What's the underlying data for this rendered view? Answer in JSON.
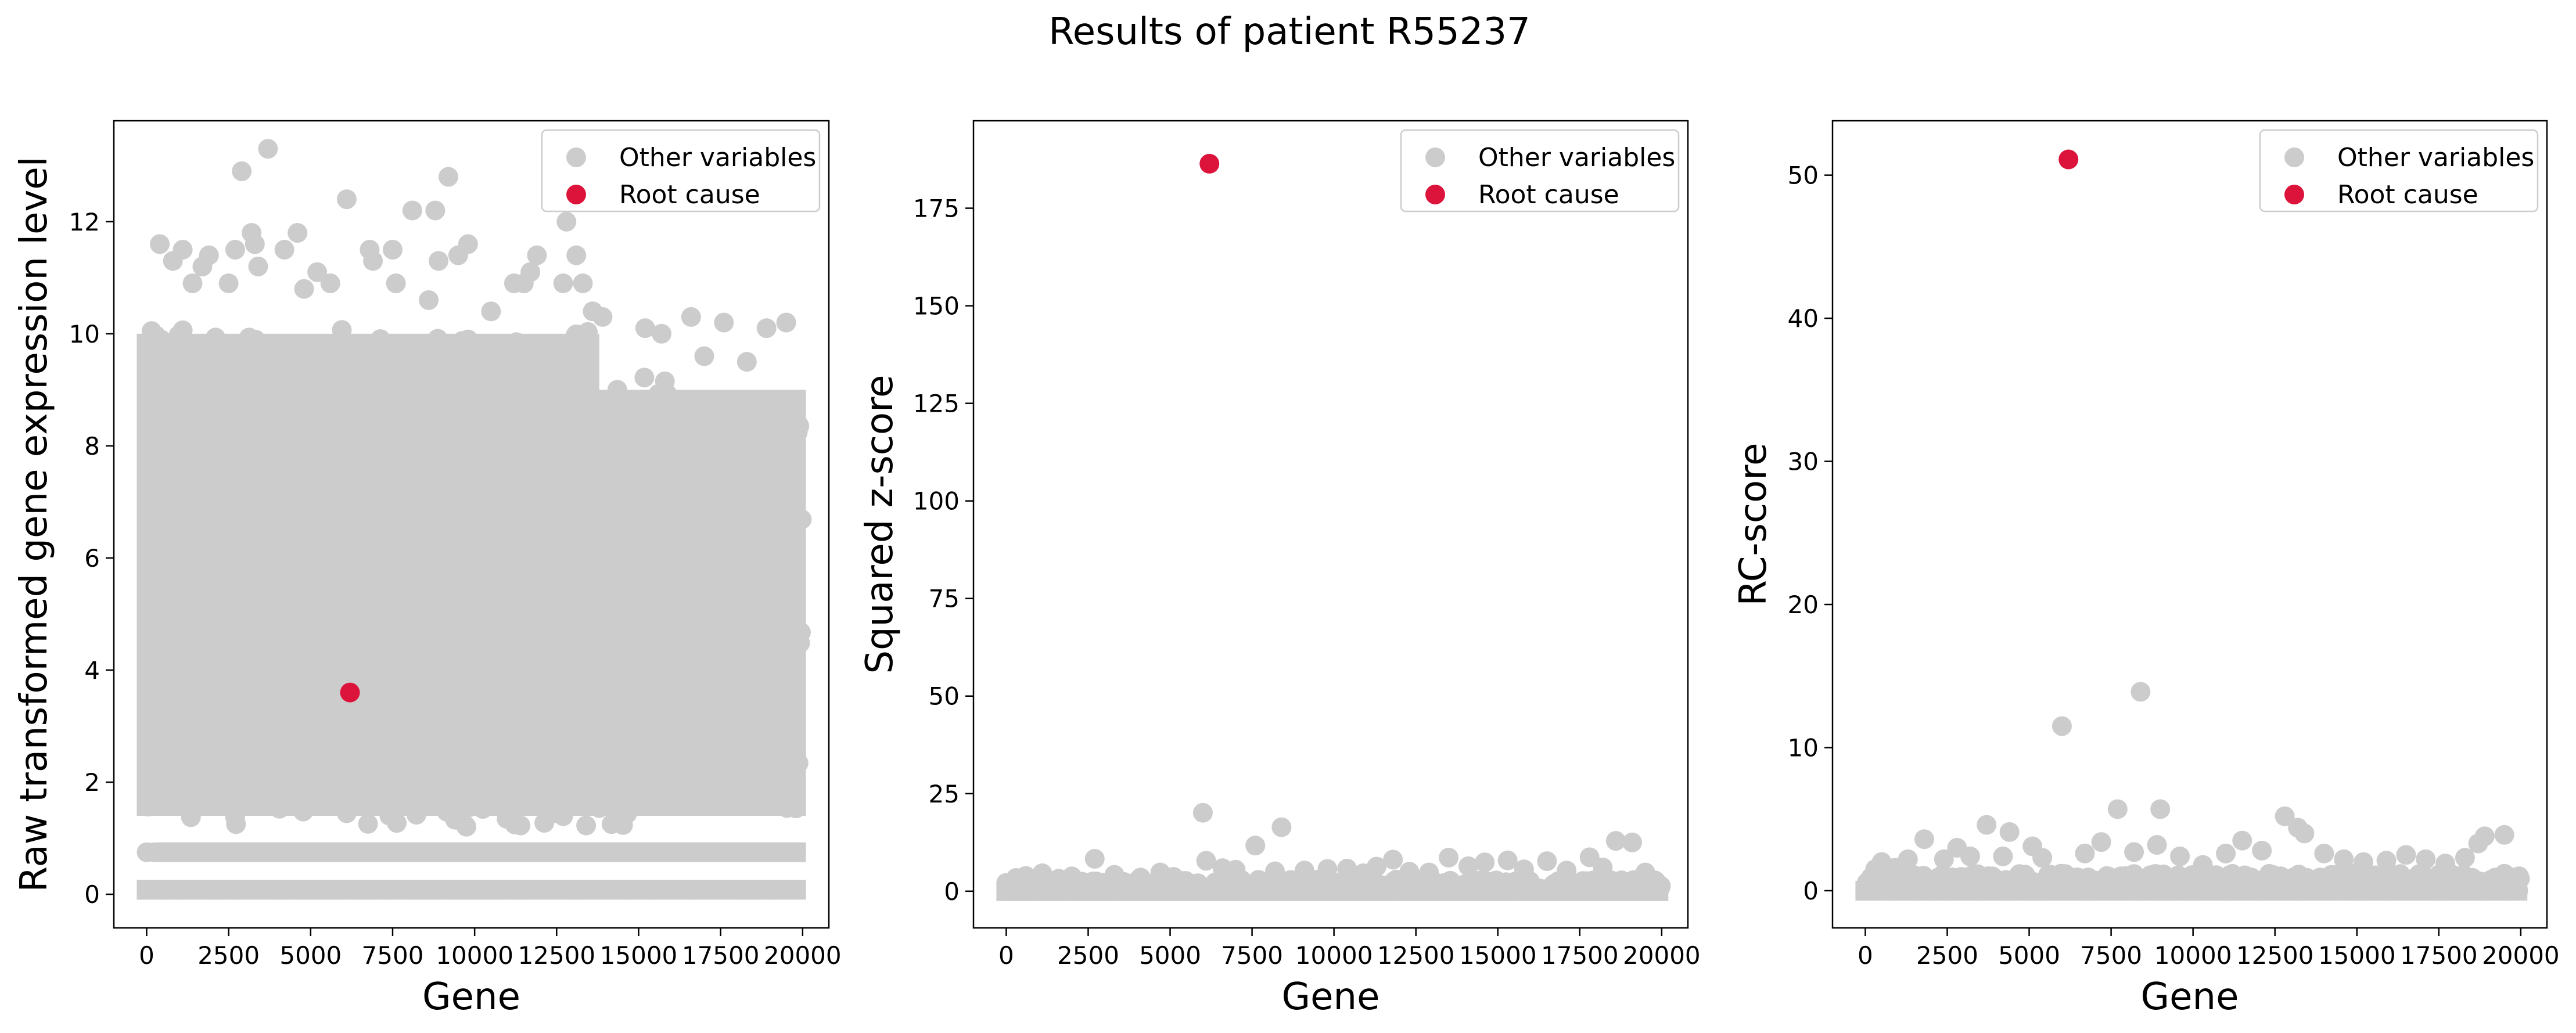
{
  "colors": {
    "other": "#cccccc",
    "root": "#dc143c",
    "axis": "#000000",
    "legend_border": "#cccccc"
  },
  "chart_data": {
    "title": "Results of patient R55237",
    "charts": [
      {
        "type": "scatter",
        "xlabel": "Gene",
        "ylabel": "Raw transformed gene expression level",
        "xlim": [
          -1000,
          20800
        ],
        "ylim": [
          -0.6,
          13.8
        ],
        "xticks": [
          0,
          2500,
          5000,
          7500,
          10000,
          12500,
          15000,
          17500,
          20000
        ],
        "yticks": [
          0,
          2,
          4,
          6,
          8,
          10,
          12
        ],
        "legend_position": "top-right",
        "series": [
          {
            "name": "Other variables",
            "generated": {
              "n_genes": 20000,
              "profile": "expression"
            },
            "values": [
              [
                400,
                11.6
              ],
              [
                800,
                11.3
              ],
              [
                1100,
                11.5
              ],
              [
                1400,
                10.9
              ],
              [
                1700,
                11.2
              ],
              [
                1900,
                11.4
              ],
              [
                2500,
                10.9
              ],
              [
                2700,
                11.5
              ],
              [
                2900,
                12.9
              ],
              [
                3200,
                11.8
              ],
              [
                3400,
                11.2
              ],
              [
                3300,
                11.6
              ],
              [
                3700,
                13.3
              ],
              [
                4200,
                11.5
              ],
              [
                4600,
                11.8
              ],
              [
                4800,
                10.8
              ],
              [
                5200,
                11.1
              ],
              [
                5600,
                10.9
              ],
              [
                6100,
                12.4
              ],
              [
                6800,
                11.5
              ],
              [
                6900,
                11.3
              ],
              [
                7500,
                11.5
              ],
              [
                7600,
                10.9
              ],
              [
                8100,
                12.2
              ],
              [
                8600,
                10.6
              ],
              [
                8800,
                12.2
              ],
              [
                8900,
                11.3
              ],
              [
                9200,
                12.8
              ],
              [
                9500,
                11.4
              ],
              [
                9800,
                11.6
              ],
              [
                10500,
                10.4
              ],
              [
                11200,
                10.9
              ],
              [
                11500,
                10.9
              ],
              [
                11700,
                11.1
              ],
              [
                11900,
                11.4
              ],
              [
                12700,
                10.9
              ],
              [
                12800,
                12.0
              ],
              [
                13100,
                11.4
              ],
              [
                13300,
                10.9
              ],
              [
                13600,
                10.4
              ],
              [
                13900,
                10.3
              ],
              [
                15200,
                10.1
              ],
              [
                15700,
                10.0
              ],
              [
                16600,
                10.3
              ],
              [
                17000,
                9.6
              ],
              [
                17600,
                10.2
              ],
              [
                18300,
                9.5
              ],
              [
                18900,
                10.1
              ],
              [
                19500,
                10.2
              ]
            ]
          },
          {
            "name": "Root cause",
            "values": [
              [
                6200,
                3.6
              ]
            ]
          }
        ]
      },
      {
        "type": "scatter",
        "xlabel": "Gene",
        "ylabel": "Squared z-score",
        "xlim": [
          -1000,
          20800
        ],
        "ylim": [
          -9.4,
          197.4
        ],
        "xticks": [
          0,
          2500,
          5000,
          7500,
          10000,
          12500,
          15000,
          17500,
          20000
        ],
        "yticks": [
          0,
          25,
          50,
          75,
          100,
          125,
          150,
          175
        ],
        "legend_position": "top-right",
        "series": [
          {
            "name": "Other variables",
            "generated": {
              "n_genes": 20000,
              "profile": "lowband",
              "band": 3.0
            },
            "values": [
              [
                300,
                3.4
              ],
              [
                600,
                3.9
              ],
              [
                1100,
                4.6
              ],
              [
                1600,
                3.2
              ],
              [
                2000,
                3.8
              ],
              [
                2700,
                8.3
              ],
              [
                3300,
                4.2
              ],
              [
                4100,
                3.5
              ],
              [
                4700,
                4.8
              ],
              [
                5100,
                3.7
              ],
              [
                6000,
                20.1
              ],
              [
                6100,
                7.8
              ],
              [
                6600,
                5.9
              ],
              [
                7000,
                5.5
              ],
              [
                7600,
                11.7
              ],
              [
                8200,
                5.1
              ],
              [
                8400,
                16.4
              ],
              [
                9100,
                5.3
              ],
              [
                9800,
                5.7
              ],
              [
                10400,
                5.8
              ],
              [
                10900,
                4.6
              ],
              [
                11300,
                6.3
              ],
              [
                11800,
                8.1
              ],
              [
                12300,
                5.0
              ],
              [
                12900,
                4.8
              ],
              [
                13500,
                8.6
              ],
              [
                14100,
                6.4
              ],
              [
                14600,
                7.4
              ],
              [
                15300,
                7.9
              ],
              [
                15800,
                5.6
              ],
              [
                16500,
                7.7
              ],
              [
                17100,
                5.3
              ],
              [
                17800,
                8.7
              ],
              [
                18200,
                6.1
              ],
              [
                18600,
                12.9
              ],
              [
                19100,
                12.5
              ],
              [
                19500,
                4.8
              ]
            ]
          },
          {
            "name": "Root cause",
            "values": [
              [
                6200,
                186.4
              ]
            ]
          }
        ]
      },
      {
        "type": "scatter",
        "xlabel": "Gene",
        "ylabel": "RC-score",
        "xlim": [
          -1000,
          20800
        ],
        "ylim": [
          -2.6,
          53.8
        ],
        "xticks": [
          0,
          2500,
          5000,
          7500,
          10000,
          12500,
          15000,
          17500,
          20000
        ],
        "yticks": [
          0,
          10,
          20,
          30,
          40,
          50
        ],
        "legend_position": "top-right",
        "series": [
          {
            "name": "Other variables",
            "generated": {
              "n_genes": 20000,
              "profile": "lowband",
              "band": 1.2
            },
            "values": [
              [
                300,
                1.5
              ],
              [
                500,
                2.0
              ],
              [
                900,
                1.6
              ],
              [
                1300,
                2.2
              ],
              [
                1800,
                3.6
              ],
              [
                2400,
                2.2
              ],
              [
                2800,
                3.0
              ],
              [
                3200,
                2.4
              ],
              [
                3700,
                4.6
              ],
              [
                4200,
                2.4
              ],
              [
                4400,
                4.1
              ],
              [
                5100,
                3.1
              ],
              [
                5400,
                2.3
              ],
              [
                6000,
                11.5
              ],
              [
                6700,
                2.6
              ],
              [
                7200,
                3.4
              ],
              [
                7700,
                5.7
              ],
              [
                8200,
                2.7
              ],
              [
                8400,
                13.9
              ],
              [
                8900,
                3.2
              ],
              [
                9000,
                5.7
              ],
              [
                9600,
                2.4
              ],
              [
                10300,
                1.8
              ],
              [
                11000,
                2.6
              ],
              [
                11500,
                3.5
              ],
              [
                12100,
                2.8
              ],
              [
                12800,
                5.2
              ],
              [
                13200,
                4.4
              ],
              [
                13400,
                4.0
              ],
              [
                14000,
                2.6
              ],
              [
                14600,
                2.2
              ],
              [
                15200,
                2.0
              ],
              [
                15900,
                2.1
              ],
              [
                16500,
                2.5
              ],
              [
                17100,
                2.2
              ],
              [
                17700,
                1.9
              ],
              [
                18300,
                2.3
              ],
              [
                18700,
                3.3
              ],
              [
                18900,
                3.8
              ],
              [
                19500,
                3.9
              ]
            ]
          },
          {
            "name": "Root cause",
            "values": [
              [
                6200,
                51.1
              ]
            ]
          }
        ]
      }
    ]
  }
}
